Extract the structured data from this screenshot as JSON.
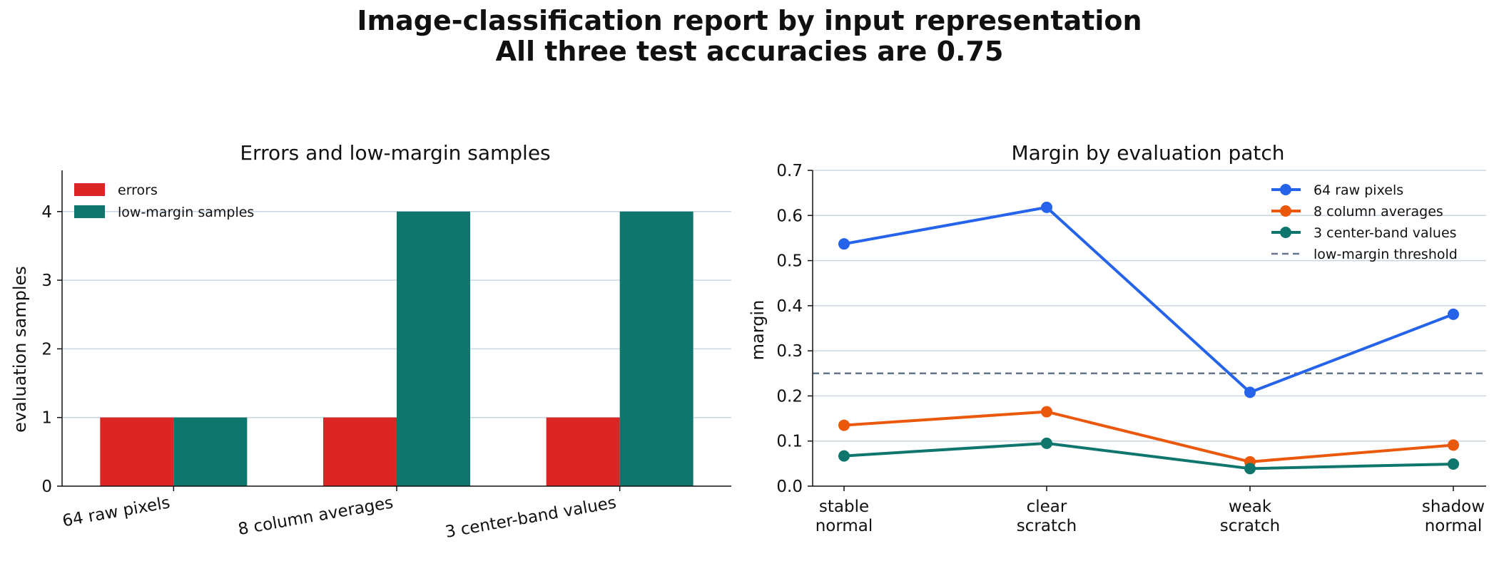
{
  "figure": {
    "title_line1": "Image-classification report by input representation",
    "title_line2": "All three test accuracies are 0.75"
  },
  "colors": {
    "errors": "#dc2626",
    "low_margin": "#0f766e",
    "raw": "#2563eb",
    "column": "#ea580c",
    "band": "#0f766e",
    "threshold": "#64748b",
    "grid": "#cbd5e1"
  },
  "chart_data": [
    {
      "type": "bar",
      "title": "Errors and low-margin samples",
      "xlabel": "",
      "ylabel": "evaluation samples",
      "categories": [
        "64 raw pixels",
        "8 column averages",
        "3 center-band values"
      ],
      "series": [
        {
          "name": "errors",
          "values": [
            1,
            1,
            1
          ]
        },
        {
          "name": "low-margin samples",
          "values": [
            1,
            4,
            4
          ]
        }
      ],
      "ylim": [
        0,
        4.6
      ],
      "yticks": [
        0,
        1,
        2,
        3,
        4
      ],
      "grid": "y",
      "legend": "top-left"
    },
    {
      "type": "line",
      "title": "Margin by evaluation patch",
      "xlabel": "",
      "ylabel": "margin",
      "categories": [
        [
          "stable",
          "normal"
        ],
        [
          "clear",
          "scratch"
        ],
        [
          "weak",
          "scratch"
        ],
        [
          "shadow",
          "normal"
        ]
      ],
      "series": [
        {
          "name": "64 raw pixels",
          "values": [
            0.537,
            0.618,
            0.208,
            0.381
          ]
        },
        {
          "name": "8 column averages",
          "values": [
            0.135,
            0.165,
            0.054,
            0.091
          ]
        },
        {
          "name": "3 center-band values",
          "values": [
            0.067,
            0.095,
            0.039,
            0.049
          ]
        }
      ],
      "threshold": {
        "name": "low-margin threshold",
        "value": 0.25
      },
      "ylim": [
        0,
        0.7
      ],
      "yticks": [
        0.0,
        0.1,
        0.2,
        0.3,
        0.4,
        0.5,
        0.6,
        0.7
      ],
      "grid": "y",
      "legend": "top-right"
    }
  ]
}
